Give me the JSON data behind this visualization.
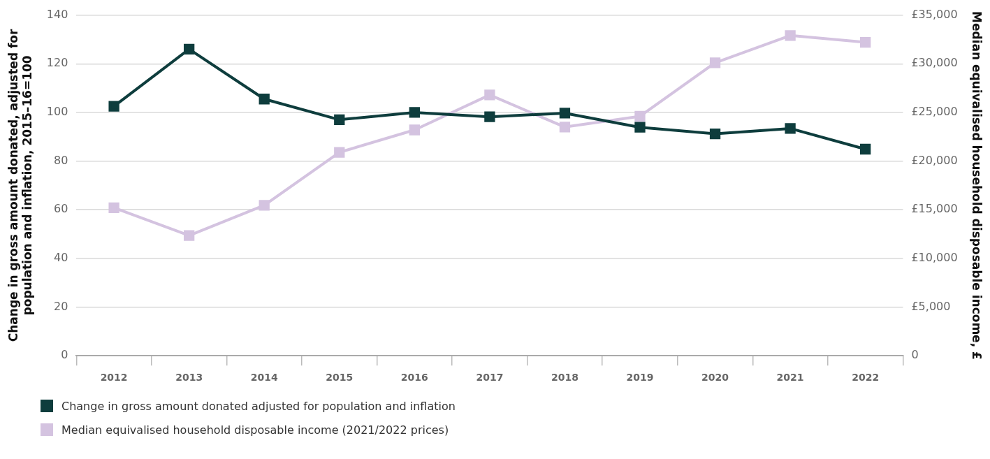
{
  "chart_data": {
    "type": "line",
    "ylabel": "Change in gross amount donated, adjusted for population and inflation, 2015–16=100",
    "y2label": "Median equivalised household disposable income, £",
    "categories": [
      "2012",
      "2013",
      "2014",
      "2015",
      "2016",
      "2017",
      "2018",
      "2019",
      "2020",
      "2021",
      "2022"
    ],
    "series": [
      {
        "name": "Change in gross amount donated adjusted for population and inflation",
        "color": "#0e3d3d",
        "values": [
          102.5,
          126,
          105.5,
          97,
          100,
          98.2,
          99.7,
          93.9,
          91.2,
          93.4,
          84.9
        ]
      },
      {
        "name": "Median equivalised household disposable income (2021/2022 prices)",
        "color": "#d4c3e0",
        "axis": "y2",
        "values": [
          15200,
          12350,
          15450,
          20900,
          23200,
          26800,
          23500,
          24600,
          30100,
          32900,
          32200
        ]
      }
    ],
    "ylim": [
      0,
      140
    ],
    "yticks": [
      0,
      20,
      40,
      60,
      80,
      100,
      120,
      140
    ],
    "y2lim": [
      0,
      35000
    ],
    "y2ticks": [
      {
        "value": 0,
        "label": "0"
      },
      {
        "value": 5000,
        "label": "£5,000"
      },
      {
        "value": 10000,
        "label": "£10,000"
      },
      {
        "value": 15000,
        "label": "£15,000"
      },
      {
        "value": 20000,
        "label": "£20,000"
      },
      {
        "value": 25000,
        "label": "£25,000"
      },
      {
        "value": 30000,
        "label": "£30,000"
      },
      {
        "value": 35000,
        "label": "£35,000"
      }
    ],
    "grid": "y",
    "legend": "bottom",
    "marker": "square",
    "line_style": "solid"
  }
}
